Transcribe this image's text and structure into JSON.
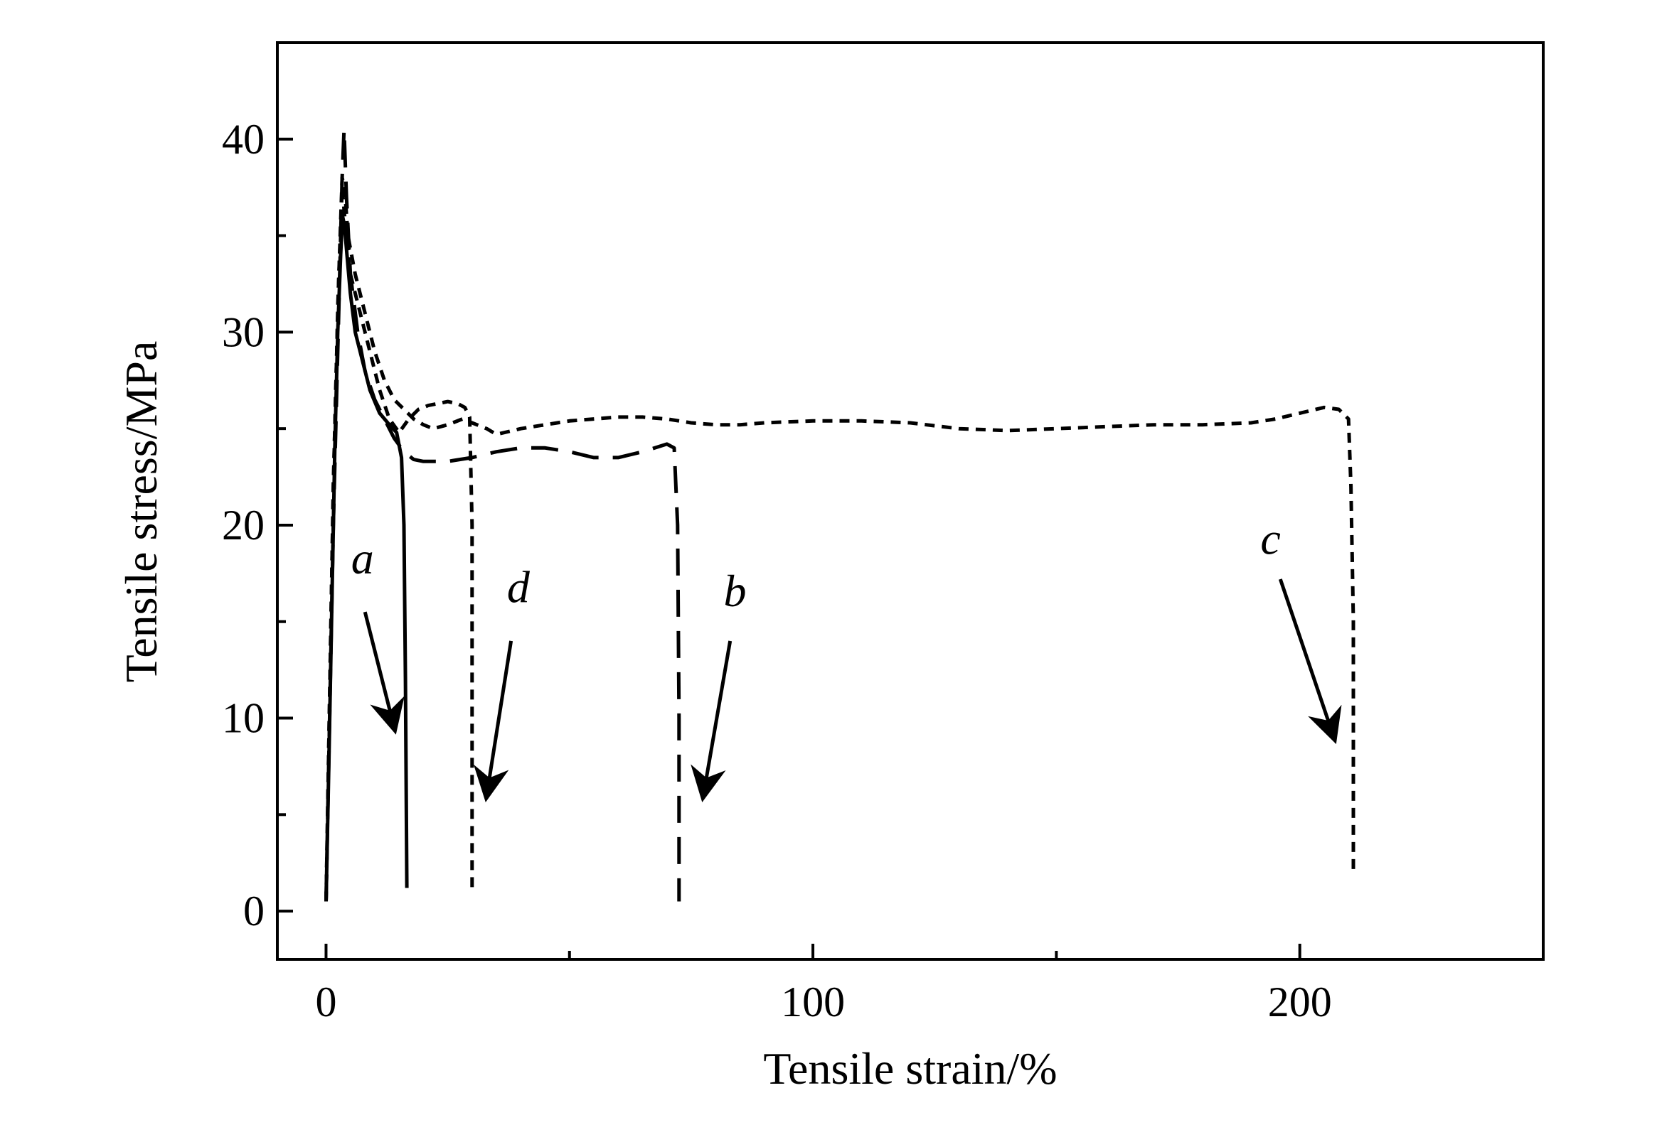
{
  "chart_data": {
    "type": "line",
    "xlabel": "Tensile strain/%",
    "ylabel": "Tensile stress/MPa",
    "xlim": [
      -10,
      250
    ],
    "ylim": [
      -2.5,
      45
    ],
    "xticks": [
      0,
      100,
      200
    ],
    "yticks": [
      0,
      10,
      20,
      30,
      40
    ],
    "xminor": [
      50,
      150,
      250
    ],
    "yminor": [
      5,
      15,
      25,
      35
    ],
    "grid": false,
    "legend": "none",
    "color": "#000000",
    "series": [
      {
        "name": "a",
        "style": "solid",
        "x": [
          0,
          0.6,
          1.2,
          1.8,
          2.4,
          3.0,
          3.4,
          3.8,
          4.3,
          5,
          6,
          7.5,
          9,
          11,
          13,
          14.5,
          15.5,
          16,
          16.3,
          16.5,
          16.6
        ],
        "y": [
          0.5,
          8,
          16,
          24,
          30,
          34,
          36,
          35.5,
          34,
          32,
          30,
          28.5,
          27,
          25.8,
          25.2,
          24.8,
          23.5,
          20,
          12,
          5,
          1.2
        ]
      },
      {
        "name": "b",
        "style": "dashed",
        "x": [
          0,
          1.5,
          2.5,
          3.3,
          3.7,
          4.2,
          5,
          6.5,
          8,
          10,
          12,
          14,
          16,
          18,
          20,
          25,
          30,
          35,
          40,
          45,
          50,
          55,
          60,
          65,
          70,
          71.5,
          72.2,
          72.5,
          72.5,
          72.5
        ],
        "y": [
          0.5,
          20,
          30,
          38,
          40.5,
          37,
          33,
          30,
          28,
          26.5,
          25.5,
          24.5,
          23.8,
          23.4,
          23.3,
          23.3,
          23.5,
          23.8,
          24.0,
          24.0,
          23.8,
          23.5,
          23.5,
          23.8,
          24.2,
          24.0,
          20,
          10,
          3,
          0.5
        ]
      },
      {
        "name": "c",
        "style": "dotted",
        "x": [
          0,
          1.5,
          2.5,
          3.3,
          3.8,
          4.5,
          6,
          8,
          10,
          12,
          14,
          16,
          18,
          20,
          22,
          25,
          28,
          30,
          33,
          35,
          40,
          45,
          50,
          55,
          60,
          65,
          70,
          75,
          80,
          85,
          90,
          100,
          110,
          120,
          130,
          140,
          150,
          160,
          170,
          180,
          190,
          195,
          200,
          205,
          208,
          210,
          210.5,
          211,
          211,
          211
        ],
        "y": [
          0.5,
          22,
          32,
          38,
          37.5,
          35,
          33,
          31,
          29,
          27.5,
          26.5,
          26,
          25.5,
          25.2,
          25.0,
          25.2,
          25.5,
          25.3,
          25.0,
          24.7,
          25.0,
          25.2,
          25.4,
          25.5,
          25.6,
          25.6,
          25.5,
          25.3,
          25.2,
          25.2,
          25.3,
          25.4,
          25.4,
          25.3,
          25.0,
          24.9,
          25.0,
          25.1,
          25.2,
          25.2,
          25.3,
          25.5,
          25.8,
          26.1,
          26.0,
          25.5,
          22,
          15,
          8,
          2
        ]
      },
      {
        "name": "d",
        "style": "dotted",
        "x": [
          0,
          1.5,
          2.5,
          3.3,
          4.0,
          5,
          7,
          9,
          11,
          13,
          15,
          17,
          19,
          21,
          23,
          25,
          27,
          28.5,
          29.5,
          30,
          30,
          30
        ],
        "y": [
          0.5,
          22,
          32,
          37.5,
          35.5,
          33,
          31,
          29,
          27,
          25.5,
          24.8,
          25.5,
          26,
          26.2,
          26.3,
          26.4,
          26.3,
          26.1,
          25.6,
          20,
          10,
          1
        ]
      }
    ],
    "annotations": [
      {
        "label": "a",
        "text_xy": [
          7.5,
          17.5
        ],
        "arrow_from": [
          8,
          15.5
        ],
        "arrow_to": [
          14,
          9.5
        ]
      },
      {
        "label": "d",
        "text_xy": [
          39.5,
          16
        ],
        "arrow_from": [
          38,
          14
        ],
        "arrow_to": [
          33,
          6
        ]
      },
      {
        "label": "b",
        "text_xy": [
          84,
          15.8
        ],
        "arrow_from": [
          83,
          14
        ],
        "arrow_to": [
          77.5,
          6
        ]
      },
      {
        "label": "c",
        "text_xy": [
          194,
          18.5
        ],
        "arrow_from": [
          196,
          17.2
        ],
        "arrow_to": [
          207,
          9
        ]
      }
    ]
  }
}
